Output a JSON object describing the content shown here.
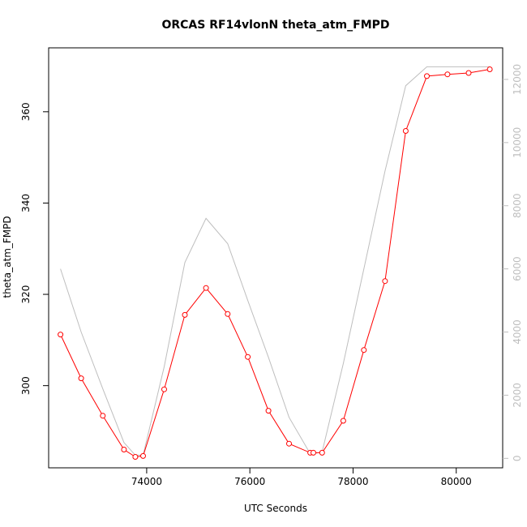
{
  "chart_data": {
    "type": "line",
    "title": "ORCAS RF14vlonN theta_atm_FMPD",
    "xlabel": "UTC Seconds",
    "ylabel": "theta_atm_FMPD",
    "xlim": [
      72100,
      80900
    ],
    "ylim": [
      282,
      374
    ],
    "y2lim": [
      -300,
      13000
    ],
    "x_ticks": [
      74000,
      76000,
      78000,
      80000
    ],
    "y_ticks": [
      300,
      320,
      340,
      360
    ],
    "y2_ticks": [
      0,
      2000,
      4000,
      6000,
      8000,
      10000,
      12000
    ],
    "colors": {
      "primary": "#ff0000",
      "secondary": "#bebebe"
    },
    "series": [
      {
        "axis": "left",
        "style": "line-points",
        "x": [
          72330,
          72730,
          73150,
          73560,
          73780,
          73930,
          74340,
          74740,
          75150,
          75570,
          75960,
          76360,
          76760,
          77170,
          77230,
          77400,
          77810,
          78210,
          78620,
          79020,
          79430,
          79830,
          80240,
          80650
        ],
        "values": [
          311.2,
          301.6,
          293.4,
          286.0,
          284.4,
          284.6,
          299.2,
          315.5,
          321.4,
          315.7,
          306.3,
          294.5,
          287.3,
          285.3,
          285.3,
          285.3,
          292.3,
          307.8,
          322.9,
          355.8,
          367.8,
          368.2,
          368.5,
          369.3
        ]
      },
      {
        "axis": "right",
        "style": "line",
        "x": [
          72330,
          72730,
          73150,
          73560,
          73780,
          73930,
          74340,
          74740,
          75150,
          75570,
          75960,
          76360,
          76760,
          77170,
          77230,
          77400,
          77810,
          78210,
          78620,
          79020,
          79430,
          79830,
          80240,
          80650
        ],
        "values": [
          6000,
          4000,
          2200,
          500,
          100,
          100,
          2900,
          6200,
          7600,
          6800,
          5000,
          3200,
          1300,
          150,
          150,
          200,
          3000,
          6000,
          9100,
          11800,
          12400,
          12400,
          12400,
          12400
        ]
      }
    ]
  }
}
